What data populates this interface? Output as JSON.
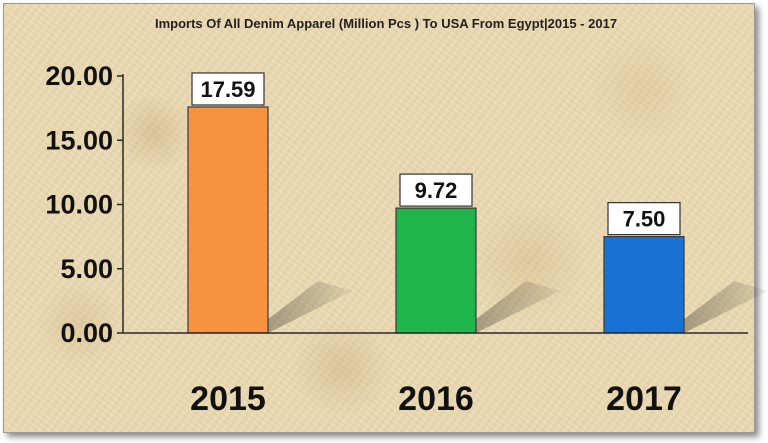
{
  "chart_data": {
    "type": "bar",
    "title": "Imports Of All Denim Apparel (Million Pcs ) To USA From Egypt|2015 - 2017",
    "categories": [
      "2015",
      "2016",
      "2017"
    ],
    "values": [
      17.59,
      9.72,
      7.5
    ],
    "data_labels": [
      "17.59",
      "9.72",
      "7.50"
    ],
    "colors": [
      "#f7923f",
      "#1fb54a",
      "#1872d4"
    ],
    "bar_stroke": "#3a3a3a",
    "ylim": [
      0,
      20
    ],
    "yticks": [
      0,
      5,
      10,
      15,
      20
    ],
    "ytick_labels": [
      "0.00",
      "5.00",
      "10.00",
      "15.00",
      "20.00"
    ],
    "xlabel": "",
    "ylabel": "",
    "grid": false,
    "legend": false,
    "background": "#e9d9b3"
  }
}
